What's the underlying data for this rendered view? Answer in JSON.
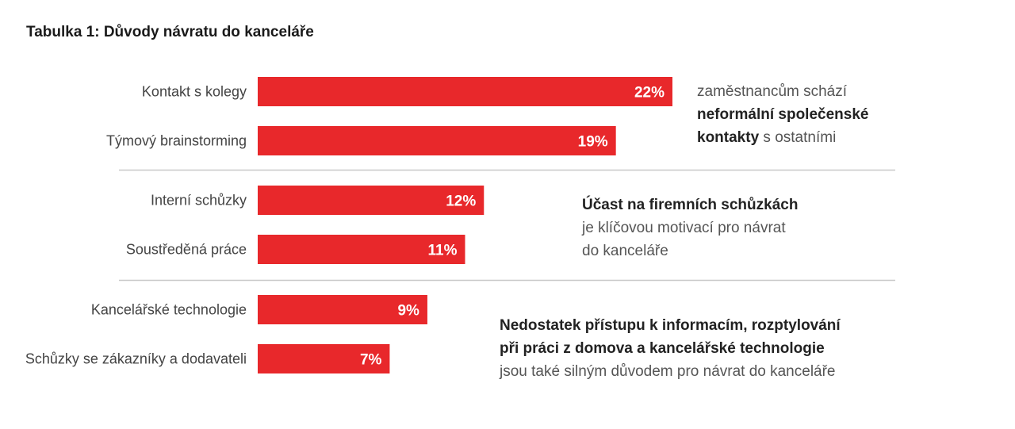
{
  "accent_color": "#e8282b",
  "chart_data": {
    "type": "bar",
    "orientation": "horizontal",
    "title": "Tabulka 1: Důvody návratu do kanceláře",
    "categories": [
      "Kontakt s kolegy",
      "Týmový brainstorming",
      "Interní schůzky",
      "Soustředěná práce",
      "Kancelářské technologie",
      "Schůzky se zákazníky a dodavateli"
    ],
    "values": [
      22,
      19,
      12,
      11,
      9,
      7
    ],
    "value_labels": [
      "22%",
      "19%",
      "12%",
      "11%",
      "9%",
      "7%"
    ],
    "unit": "%",
    "xlim": [
      0,
      22
    ],
    "groups": [
      [
        0,
        1
      ],
      [
        2,
        3
      ],
      [
        4,
        5
      ]
    ],
    "annotations": [
      {
        "group": 0,
        "lines": [
          [
            {
              "text": "zaměstnancům schází",
              "bold": false
            }
          ],
          [
            {
              "text": "neformální společenské",
              "bold": true
            }
          ],
          [
            {
              "text": "kontakty",
              "bold": true
            },
            {
              "text": " s ostatními",
              "bold": false
            }
          ]
        ]
      },
      {
        "group": 1,
        "lines": [
          [
            {
              "text": "Účast na firemních schůzkách",
              "bold": true
            }
          ],
          [
            {
              "text": "je klíčovou motivací pro návrat",
              "bold": false
            }
          ],
          [
            {
              "text": "do kanceláře",
              "bold": false
            }
          ]
        ]
      },
      {
        "group": 2,
        "lines": [
          [
            {
              "text": "Nedostatek přístupu k informacím, rozptylování",
              "bold": true
            }
          ],
          [
            {
              "text": "při práci z domova a kancelářské technologie",
              "bold": true
            }
          ],
          [
            {
              "text": "jsou také silným důvodem pro návrat do kanceláře",
              "bold": false
            }
          ]
        ]
      }
    ]
  }
}
